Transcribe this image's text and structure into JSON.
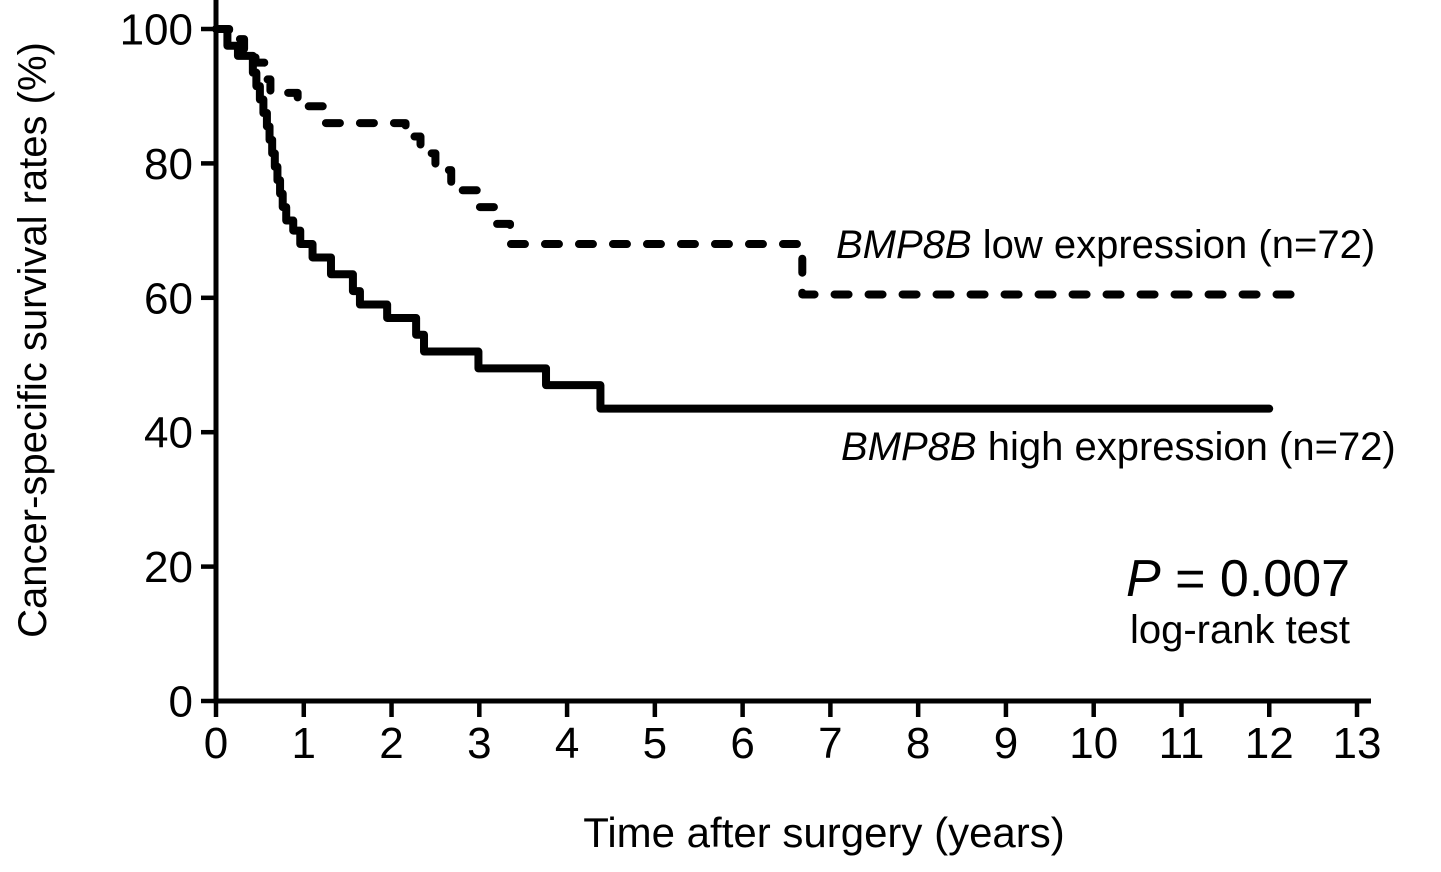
{
  "figure": {
    "background_color": "#ffffff",
    "ink_color": "#000000"
  },
  "chart_data": {
    "type": "line",
    "subtype": "kaplan-meier-step",
    "title": "",
    "xlabel": "Time after surgery (years)",
    "ylabel": "Cancer-specific survival rates (%)",
    "xlim": [
      0,
      13
    ],
    "ylim": [
      0,
      100
    ],
    "x_ticks": [
      0,
      1,
      2,
      3,
      4,
      5,
      6,
      7,
      8,
      9,
      10,
      11,
      12,
      13
    ],
    "y_ticks": [
      0,
      20,
      40,
      60,
      80,
      100
    ],
    "grid": false,
    "legend_position": "inline-labels-right-of-curves",
    "series": [
      {
        "name": "BMP8B low expression (n=72)",
        "gene_italic": "BMP8B",
        "label_suffix": " low expression (n=72)",
        "line_style": "dashed",
        "color": "#000000",
        "steps": [
          [
            0,
            100
          ],
          [
            0.15,
            98.5
          ],
          [
            0.32,
            97
          ],
          [
            0.45,
            95
          ],
          [
            0.55,
            92.5
          ],
          [
            0.62,
            90.5
          ],
          [
            0.93,
            88.5
          ],
          [
            1.25,
            86
          ],
          [
            2.16,
            84
          ],
          [
            2.33,
            81.5
          ],
          [
            2.5,
            79
          ],
          [
            2.68,
            76
          ],
          [
            3.0,
            73.5
          ],
          [
            3.17,
            71
          ],
          [
            3.35,
            68
          ],
          [
            6.68,
            60.5
          ],
          [
            12.27,
            60.5
          ]
        ]
      },
      {
        "name": "BMP8B high expression (n=72)",
        "gene_italic": "BMP8B",
        "label_suffix": " high expression (n=72)",
        "line_style": "solid",
        "color": "#000000",
        "steps": [
          [
            0,
            100
          ],
          [
            0.13,
            97.5
          ],
          [
            0.25,
            96
          ],
          [
            0.42,
            93.5
          ],
          [
            0.46,
            91.5
          ],
          [
            0.5,
            89.5
          ],
          [
            0.54,
            87.5
          ],
          [
            0.58,
            85.5
          ],
          [
            0.61,
            83.5
          ],
          [
            0.64,
            81.5
          ],
          [
            0.67,
            79.5
          ],
          [
            0.7,
            77.5
          ],
          [
            0.73,
            75.5
          ],
          [
            0.76,
            73.5
          ],
          [
            0.8,
            71.5
          ],
          [
            0.88,
            70
          ],
          [
            0.96,
            68
          ],
          [
            1.1,
            66
          ],
          [
            1.31,
            63.5
          ],
          [
            1.56,
            61
          ],
          [
            1.64,
            59
          ],
          [
            1.95,
            57
          ],
          [
            2.28,
            54.5
          ],
          [
            2.37,
            52
          ],
          [
            2.99,
            49.5
          ],
          [
            3.76,
            47
          ],
          [
            4.38,
            43.5
          ],
          [
            12.0,
            43.5
          ]
        ]
      }
    ],
    "annotations": {
      "p_value_italic": "P",
      "p_value_rest": " = 0.007",
      "test_label": "log-rank test"
    }
  }
}
